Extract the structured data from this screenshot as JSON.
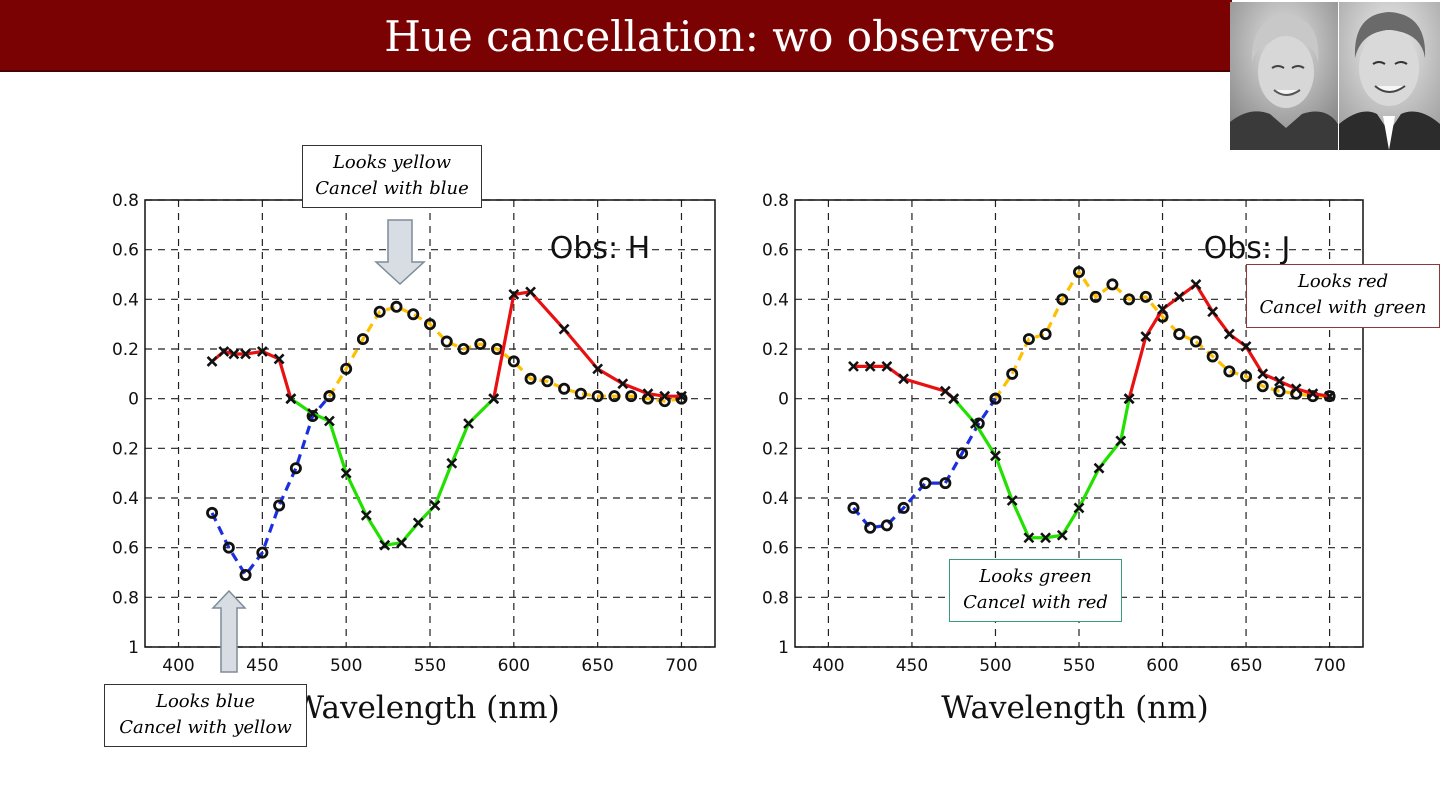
{
  "title": "Hue cancellation: wo observers",
  "callouts": {
    "yellow": {
      "line1": "Looks yellow",
      "line2": "Cancel with blue"
    },
    "blue": {
      "line1": "Looks blue",
      "line2": "Cancel with yellow"
    },
    "green": {
      "line1": "Looks green",
      "line2": "Cancel with red"
    },
    "red": {
      "line1": "Looks red",
      "line2": "Cancel with green"
    }
  },
  "colors": {
    "title_bar": "#7b0202",
    "blue": "#1a2fe0",
    "yellow": "#ffc000",
    "green": "#22e000",
    "red": "#e81010"
  },
  "chart_data": [
    {
      "type": "line",
      "annotation": "Obs: H",
      "xlabel": "Wavelength (nm)",
      "xlim": [
        380,
        720
      ],
      "xticks": [
        400,
        450,
        500,
        550,
        600,
        650,
        700
      ],
      "ylim": [
        -1,
        0.8
      ],
      "yticks": [
        0.8,
        0.6,
        0.4,
        0.2,
        0,
        -0.2,
        -0.4,
        -0.6,
        -0.8,
        -1
      ],
      "ytick_labels": [
        "0.8",
        "0.6",
        "0.4",
        "0.2",
        "0",
        "0.2",
        "0.4",
        "0.6",
        "0.8",
        "1"
      ],
      "grid": true,
      "series": [
        {
          "color": "blue",
          "dash": true,
          "marker": "o",
          "x": [
            420,
            430,
            440,
            450,
            460,
            470,
            480,
            490
          ],
          "y": [
            -0.46,
            -0.6,
            -0.71,
            -0.62,
            -0.43,
            -0.28,
            -0.07,
            0.01
          ]
        },
        {
          "color": "yellow",
          "dash": true,
          "marker": "o",
          "x": [
            490,
            500,
            510,
            520,
            530,
            540,
            550,
            560,
            570,
            580,
            590,
            600,
            610,
            620,
            630,
            640,
            650,
            660,
            670,
            680,
            690,
            700
          ],
          "y": [
            0.01,
            0.12,
            0.24,
            0.35,
            0.37,
            0.34,
            0.3,
            0.23,
            0.2,
            0.22,
            0.2,
            0.15,
            0.08,
            0.07,
            0.04,
            0.02,
            0.01,
            0.01,
            0.01,
            0.0,
            -0.01,
            0.0
          ]
        },
        {
          "color": "green",
          "dash": false,
          "marker": "x",
          "x": [
            467,
            480,
            490,
            500,
            512,
            523,
            533,
            543,
            553,
            563,
            573,
            588
          ],
          "y": [
            0.0,
            -0.06,
            -0.09,
            -0.3,
            -0.47,
            -0.59,
            -0.58,
            -0.5,
            -0.43,
            -0.26,
            -0.1,
            0.0
          ]
        },
        {
          "color": "red",
          "dash": false,
          "marker": "x",
          "x": [
            420,
            427,
            433,
            440,
            450,
            460,
            467
          ],
          "y": [
            0.15,
            0.19,
            0.18,
            0.18,
            0.19,
            0.16,
            0.0
          ]
        },
        {
          "color": "red",
          "dash": false,
          "marker": "x",
          "x": [
            588,
            600,
            610,
            630,
            650,
            665,
            680,
            690,
            700
          ],
          "y": [
            0.0,
            0.42,
            0.43,
            0.28,
            0.12,
            0.06,
            0.02,
            0.01,
            0.01
          ]
        }
      ]
    },
    {
      "type": "line",
      "annotation": "Obs: J",
      "xlabel": "Wavelength (nm)",
      "xlim": [
        380,
        720
      ],
      "xticks": [
        400,
        450,
        500,
        550,
        600,
        650,
        700
      ],
      "ylim": [
        -1,
        0.8
      ],
      "yticks": [
        0.8,
        0.6,
        0.4,
        0.2,
        0,
        -0.2,
        -0.4,
        -0.6,
        -0.8,
        -1
      ],
      "ytick_labels": [
        "0.8",
        "0.6",
        "0.4",
        "0.2",
        "0",
        "0.2",
        "0.4",
        "0.6",
        "0.8",
        "1"
      ],
      "grid": true,
      "series": [
        {
          "color": "blue",
          "dash": true,
          "marker": "o",
          "x": [
            415,
            425,
            435,
            445,
            458,
            470,
            480,
            490,
            500
          ],
          "y": [
            -0.44,
            -0.52,
            -0.51,
            -0.44,
            -0.34,
            -0.34,
            -0.22,
            -0.1,
            0.0
          ]
        },
        {
          "color": "yellow",
          "dash": true,
          "marker": "o",
          "x": [
            500,
            510,
            520,
            530,
            540,
            550,
            560,
            570,
            580,
            590,
            600,
            610,
            620,
            630,
            640,
            650,
            660,
            670,
            680,
            690,
            700
          ],
          "y": [
            0.0,
            0.1,
            0.24,
            0.26,
            0.4,
            0.51,
            0.41,
            0.46,
            0.4,
            0.41,
            0.33,
            0.26,
            0.23,
            0.17,
            0.11,
            0.09,
            0.05,
            0.03,
            0.02,
            0.01,
            0.01
          ]
        },
        {
          "color": "green",
          "dash": false,
          "marker": "x",
          "x": [
            475,
            488,
            500,
            510,
            520,
            530,
            540,
            550,
            562,
            575,
            580
          ],
          "y": [
            0.0,
            -0.1,
            -0.23,
            -0.41,
            -0.56,
            -0.56,
            -0.55,
            -0.44,
            -0.28,
            -0.17,
            0.0
          ]
        },
        {
          "color": "red",
          "dash": false,
          "marker": "x",
          "x": [
            415,
            425,
            435,
            445,
            470,
            475
          ],
          "y": [
            0.13,
            0.13,
            0.13,
            0.08,
            0.03,
            0.0
          ]
        },
        {
          "color": "red",
          "dash": false,
          "marker": "x",
          "x": [
            580,
            590,
            600,
            610,
            620,
            630,
            640,
            650,
            660,
            670,
            680,
            690,
            700
          ],
          "y": [
            0.0,
            0.25,
            0.36,
            0.41,
            0.46,
            0.35,
            0.26,
            0.21,
            0.1,
            0.07,
            0.04,
            0.02,
            0.01
          ]
        }
      ]
    }
  ]
}
